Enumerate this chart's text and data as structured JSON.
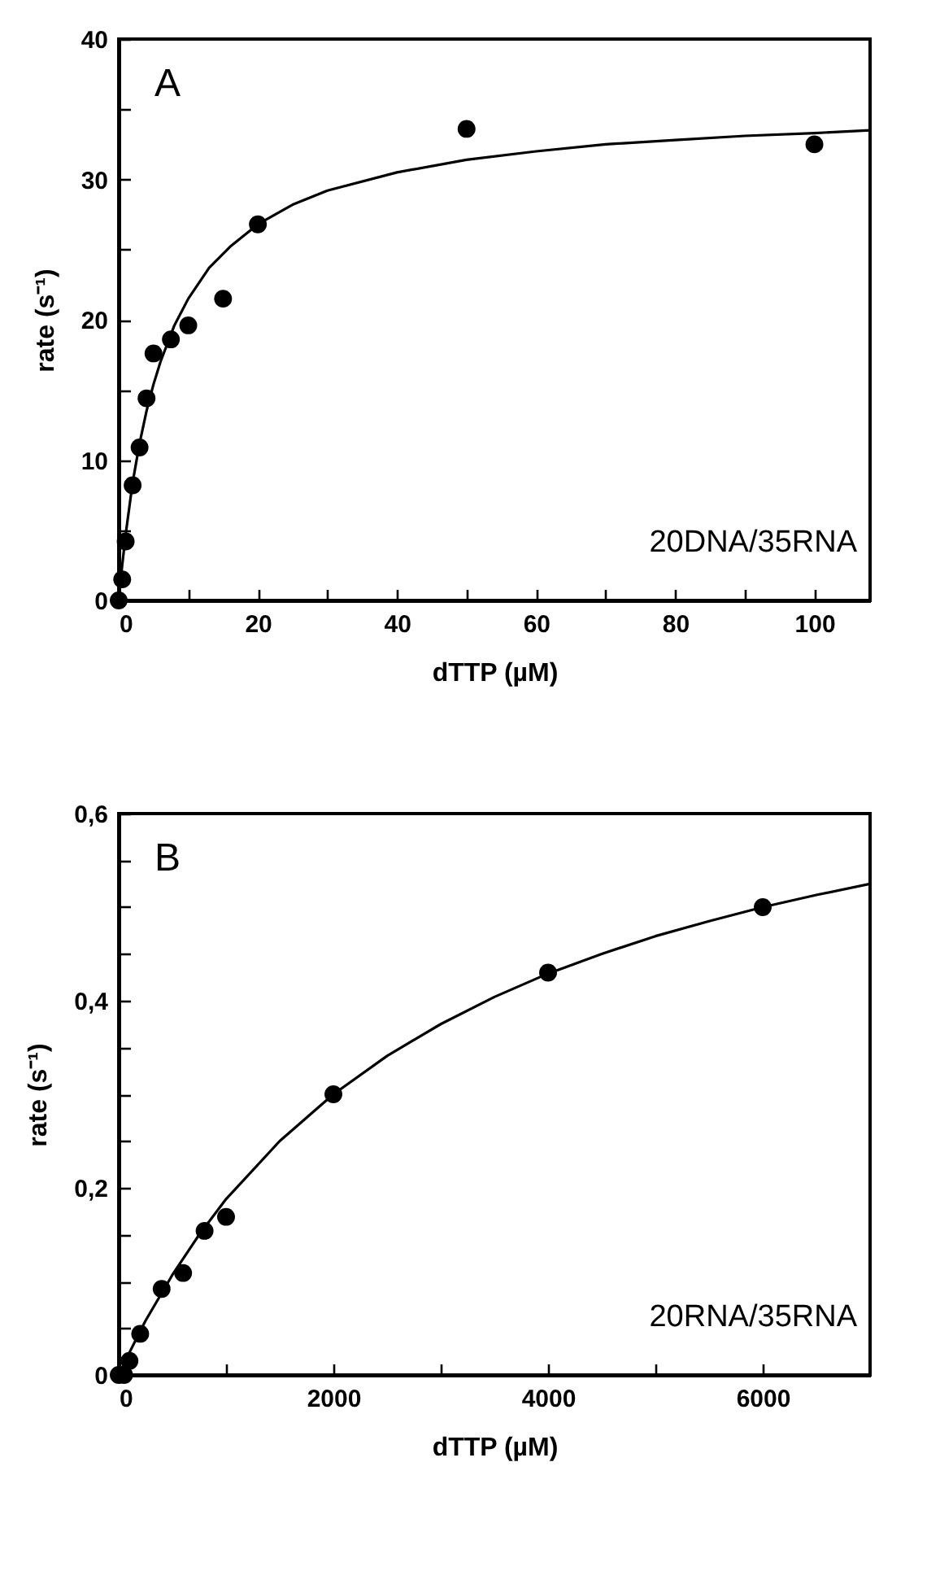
{
  "chart_data": [
    {
      "type": "scatter",
      "xlabel": "dTTP (µM)",
      "ylabel": "rate (s⁻¹)",
      "annotations": [
        "A",
        "20DNA/35RNA"
      ],
      "xlim": [
        0,
        108
      ],
      "ylim": [
        0,
        40
      ],
      "xticks": [
        0,
        {
          "value": 10,
          "label": null
        },
        20,
        {
          "value": 30,
          "label": null
        },
        40,
        {
          "value": 50,
          "label": null
        },
        60,
        {
          "value": 70,
          "label": null
        },
        80,
        {
          "value": 90,
          "label": null
        },
        100
      ],
      "yticks": [
        0,
        {
          "value": 5,
          "label": null
        },
        10,
        {
          "value": 15,
          "label": null
        },
        20,
        {
          "value": 25,
          "label": null
        },
        30,
        {
          "value": 35,
          "label": null
        },
        40
      ],
      "grid": false,
      "line_style": "solid",
      "series": [
        {
          "type": "scatter",
          "marker": "circle",
          "color": "#000000",
          "x": [
            0,
            0.5,
            1,
            2,
            3,
            4,
            5,
            7.5,
            10,
            15,
            20,
            50,
            100
          ],
          "values": [
            0,
            1.5,
            4.2,
            8.2,
            10.9,
            14.4,
            17.6,
            18.6,
            19.6,
            21.5,
            26.8,
            33.6,
            32.5
          ]
        },
        {
          "type": "line",
          "color": "#000000",
          "x": [
            0,
            0.5,
            1,
            2,
            3,
            4,
            5,
            6,
            8,
            10,
            13,
            16,
            20,
            25,
            30,
            40,
            50,
            60,
            70,
            80,
            90,
            100,
            108
          ],
          "values": [
            0,
            2.5,
            4.7,
            8.4,
            11.2,
            13.5,
            15.4,
            17.0,
            19.6,
            21.5,
            23.7,
            25.2,
            26.8,
            28.2,
            29.2,
            30.5,
            31.4,
            32.0,
            32.5,
            32.8,
            33.1,
            33.3,
            33.5
          ]
        }
      ]
    },
    {
      "type": "scatter",
      "xlabel": "dTTP (µM)",
      "ylabel": "rate (s⁻¹)",
      "annotations": [
        "B",
        "20RNA/35RNA"
      ],
      "xlim": [
        0,
        7000
      ],
      "ylim": [
        0,
        0.6
      ],
      "xticks": [
        0,
        {
          "value": 1000,
          "label": null
        },
        2000,
        {
          "value": 3000,
          "label": null
        },
        4000,
        {
          "value": 5000,
          "label": null
        },
        6000
      ],
      "yticks": [
        0,
        {
          "value": 0.05,
          "label": null
        },
        {
          "value": 0.1,
          "label": null
        },
        {
          "value": 0.15,
          "label": null
        },
        {
          "value": 0.2,
          "label": "0,2"
        },
        {
          "value": 0.25,
          "label": null
        },
        {
          "value": 0.3,
          "label": null
        },
        {
          "value": 0.35,
          "label": null
        },
        {
          "value": 0.4,
          "label": "0,4"
        },
        {
          "value": 0.45,
          "label": null
        },
        {
          "value": 0.5,
          "label": null
        },
        {
          "value": 0.55,
          "label": null
        },
        {
          "value": 0.6,
          "label": "0,6"
        }
      ],
      "grid": false,
      "line_style": "solid",
      "series": [
        {
          "type": "scatter",
          "marker": "circle",
          "color": "#000000",
          "x": [
            0,
            50,
            100,
            200,
            400,
            600,
            800,
            1000,
            2000,
            4000,
            6000
          ],
          "values": [
            0,
            0,
            0.015,
            0.044,
            0.092,
            0.109,
            0.154,
            0.169,
            0.3,
            0.43,
            0.5
          ]
        },
        {
          "type": "line",
          "color": "#000000",
          "x": [
            0,
            100,
            250,
            500,
            750,
            1000,
            1500,
            2000,
            2500,
            3000,
            3500,
            4000,
            4500,
            5000,
            5500,
            6000,
            6500,
            7000
          ],
          "values": [
            0,
            0.024,
            0.058,
            0.107,
            0.15,
            0.188,
            0.25,
            0.3,
            0.341,
            0.375,
            0.404,
            0.429,
            0.45,
            0.469,
            0.485,
            0.5,
            0.513,
            0.525
          ]
        }
      ]
    }
  ]
}
